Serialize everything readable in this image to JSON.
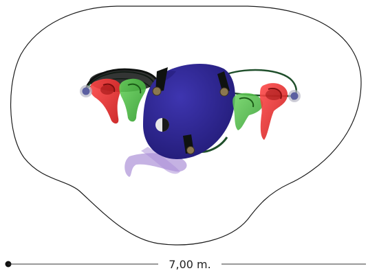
{
  "scale": {
    "label": "7,00 m."
  },
  "colors": {
    "outline": "#1a1a1a",
    "blue_body": "#2d2490",
    "blue_light": "#6f63d8",
    "purple_wash": "#8a62c8",
    "red": "#e32424",
    "red_light": "#f07a7a",
    "green": "#43b83a",
    "green_light": "#9be08f",
    "dark_green": "#1f4f2b",
    "black_blade": "#0f1210",
    "joint": "#8b7750",
    "end_cap": "#5b5fa0"
  }
}
